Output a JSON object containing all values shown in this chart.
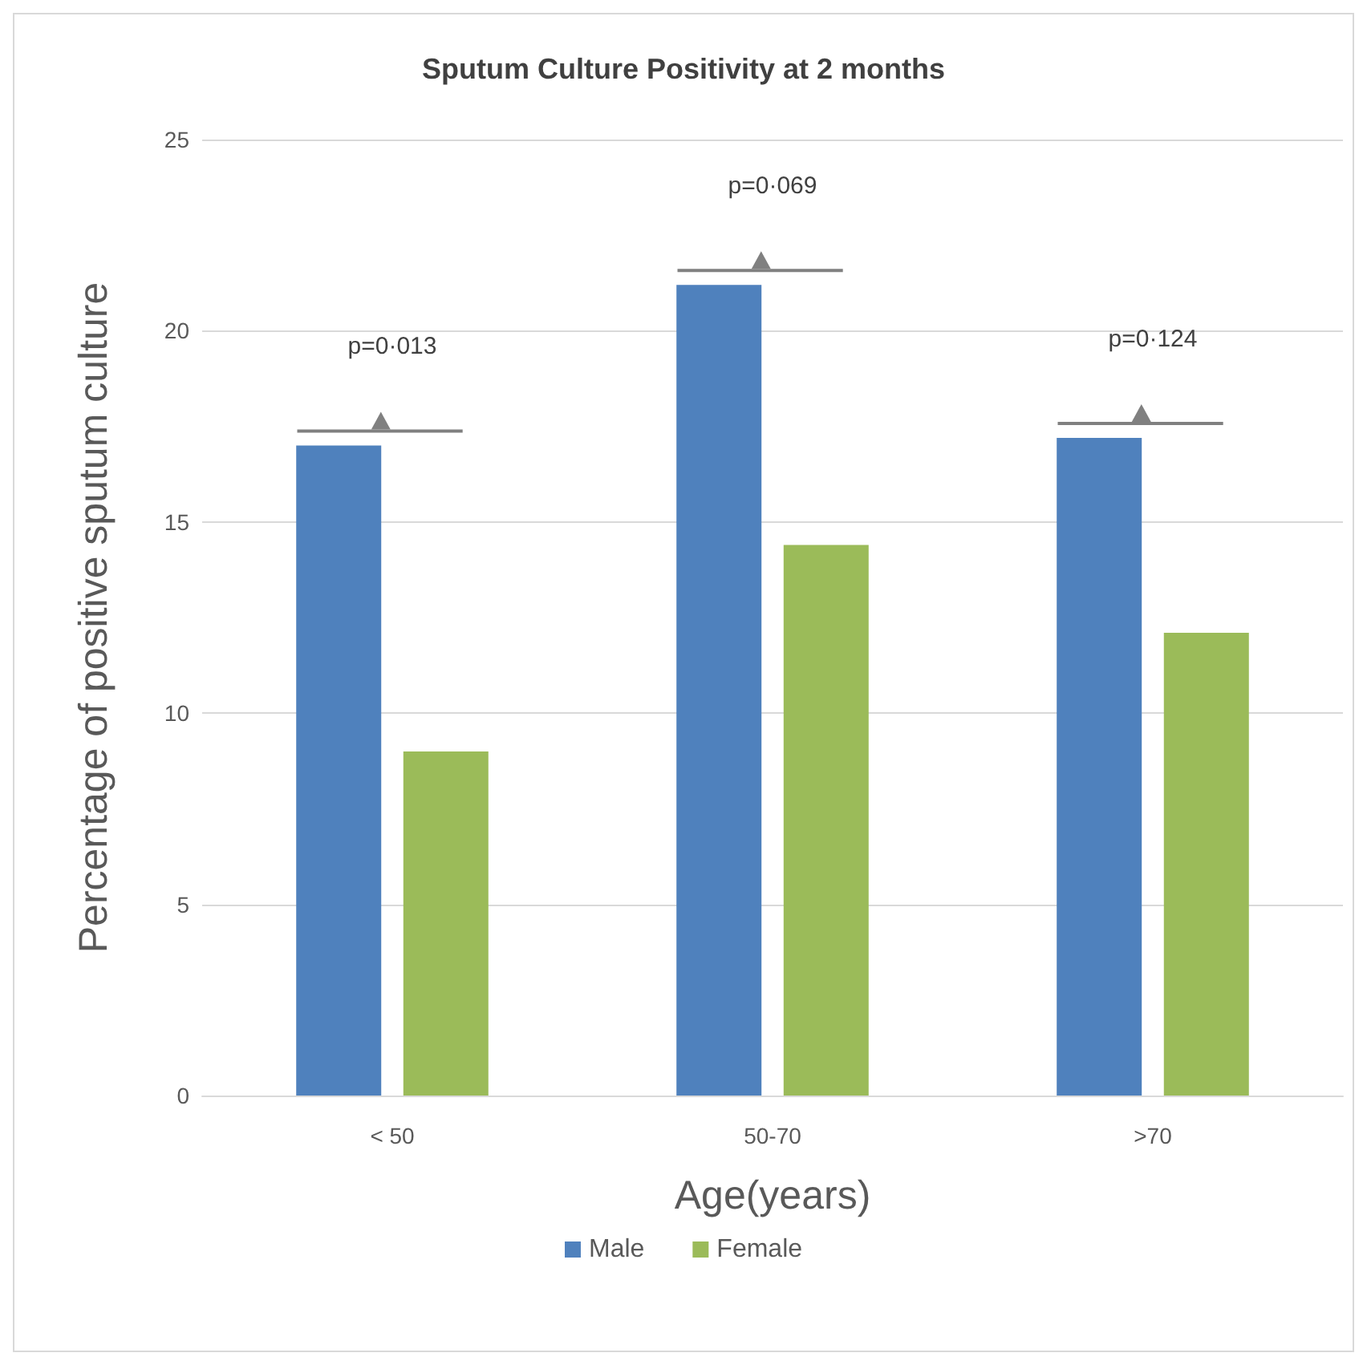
{
  "chart_data": {
    "type": "bar",
    "title": "Sputum Culture Positivity at 2 months",
    "xlabel": "Age(years)",
    "ylabel": "Percentage of positive sputum culture",
    "categories": [
      "< 50",
      "50-70",
      ">70"
    ],
    "series": [
      {
        "name": "Male",
        "color": "#4f81bd",
        "values": [
          17,
          21.2,
          17.2
        ]
      },
      {
        "name": "Female",
        "color": "#9bbb59",
        "values": [
          9,
          14.4,
          12.1
        ]
      }
    ],
    "ylim": [
      0,
      25
    ],
    "yticks": [
      0,
      5,
      10,
      15,
      20,
      25
    ],
    "grid": "y",
    "legend": "bottom",
    "annotations": [
      "p=0·013",
      "p=0·069",
      "p=0·124"
    ]
  }
}
